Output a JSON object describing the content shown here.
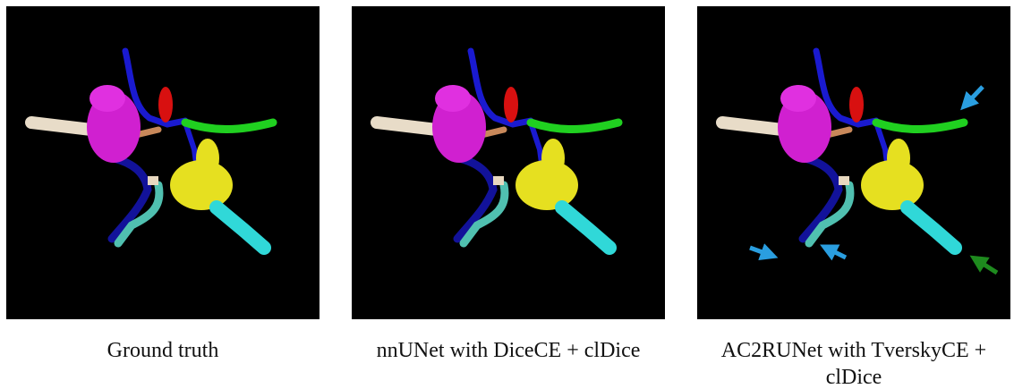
{
  "panels": [
    {
      "caption_lines": [
        "Ground truth"
      ]
    },
    {
      "caption_lines": [
        "nnUNet with DiceCE + clDice"
      ]
    },
    {
      "caption_lines": [
        "AC2RUNet with TverskyCE +",
        "clDice"
      ]
    }
  ]
}
